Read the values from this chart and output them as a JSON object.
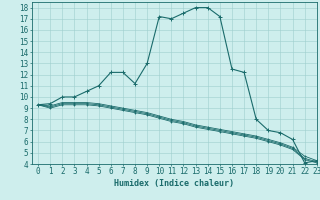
{
  "title": "",
  "xlabel": "Humidex (Indice chaleur)",
  "xlim": [
    -0.5,
    23
  ],
  "ylim": [
    4,
    18.5
  ],
  "background_color": "#ceeeed",
  "grid_color": "#9ecece",
  "line_color": "#1a6b6b",
  "xticks": [
    0,
    1,
    2,
    3,
    4,
    5,
    6,
    7,
    8,
    9,
    10,
    11,
    12,
    13,
    14,
    15,
    16,
    17,
    18,
    19,
    20,
    21,
    22,
    23
  ],
  "yticks": [
    4,
    5,
    6,
    7,
    8,
    9,
    10,
    11,
    12,
    13,
    14,
    15,
    16,
    17,
    18
  ],
  "line1_x": [
    0,
    1,
    2,
    3,
    4,
    5,
    6,
    7,
    8,
    9,
    10,
    11,
    12,
    13,
    14,
    15,
    16,
    17,
    18,
    19,
    20,
    21,
    22,
    23
  ],
  "line1_y": [
    9.3,
    9.4,
    10.0,
    10.0,
    10.5,
    11.0,
    12.2,
    12.2,
    11.2,
    13.0,
    17.2,
    17.0,
    17.5,
    18.0,
    18.0,
    17.2,
    12.5,
    12.2,
    8.0,
    7.0,
    6.8,
    6.2,
    4.1,
    4.3
  ],
  "line2_x": [
    0,
    1,
    2,
    3,
    4,
    5,
    6,
    7,
    8,
    9,
    10,
    11,
    12,
    13,
    14,
    15,
    16,
    17,
    18,
    19,
    20,
    21,
    22,
    23
  ],
  "line2_y": [
    9.3,
    9.2,
    9.5,
    9.5,
    9.5,
    9.4,
    9.2,
    9.0,
    8.8,
    8.6,
    8.3,
    8.0,
    7.8,
    7.5,
    7.3,
    7.1,
    6.9,
    6.7,
    6.5,
    6.2,
    5.9,
    5.5,
    4.7,
    4.3
  ],
  "line3_x": [
    0,
    1,
    2,
    3,
    4,
    5,
    6,
    7,
    8,
    9,
    10,
    11,
    12,
    13,
    14,
    15,
    16,
    17,
    18,
    19,
    20,
    21,
    22,
    23
  ],
  "line3_y": [
    9.3,
    9.1,
    9.4,
    9.4,
    9.4,
    9.3,
    9.1,
    8.9,
    8.7,
    8.5,
    8.2,
    7.9,
    7.7,
    7.4,
    7.2,
    7.0,
    6.8,
    6.6,
    6.4,
    6.1,
    5.8,
    5.4,
    4.5,
    4.2
  ],
  "line4_x": [
    0,
    1,
    2,
    3,
    4,
    5,
    6,
    7,
    8,
    9,
    10,
    11,
    12,
    13,
    14,
    15,
    16,
    17,
    18,
    19,
    20,
    21,
    22,
    23
  ],
  "line4_y": [
    9.3,
    9.0,
    9.3,
    9.3,
    9.3,
    9.2,
    9.0,
    8.8,
    8.6,
    8.4,
    8.1,
    7.8,
    7.6,
    7.3,
    7.1,
    6.9,
    6.7,
    6.5,
    6.3,
    6.0,
    5.7,
    5.3,
    4.4,
    4.1
  ],
  "font_size": 5.5,
  "label_font_size": 6
}
